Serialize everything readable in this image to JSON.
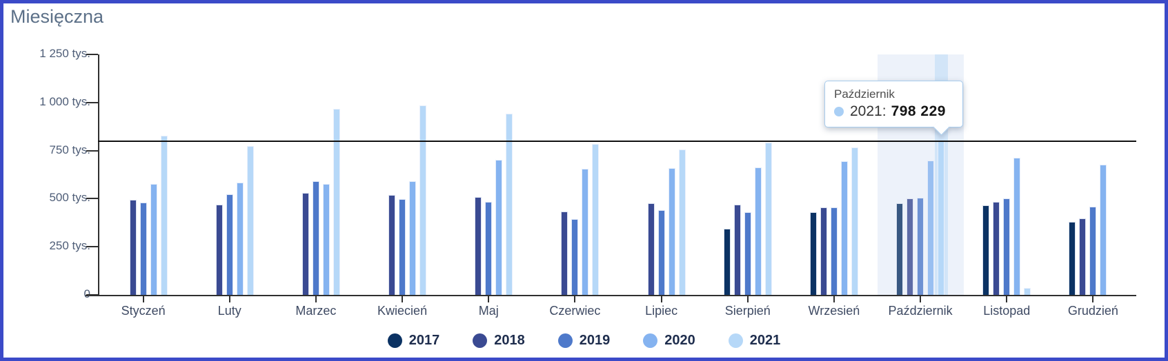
{
  "page": {
    "title": "Miesięczna",
    "frame_border_color": "#3b4ac8"
  },
  "chart_data": {
    "type": "bar",
    "title": "Miesięczna",
    "unit": "tys.",
    "categories": [
      "Styczeń",
      "Luty",
      "Marzec",
      "Kwiecień",
      "Maj",
      "Czerwiec",
      "Lipiec",
      "Sierpień",
      "Wrzesień",
      "Październik",
      "Listopad",
      "Grudzień"
    ],
    "y_ticks": [
      "1 250 tys.",
      "1 000 tys.",
      "750 tys.",
      "500 tys.",
      "250 tys.",
      "0"
    ],
    "ylim": [
      0,
      1250
    ],
    "values_unit_note": "values in thousands (tys.)",
    "series": [
      {
        "name": "2017",
        "color": "#0b3263",
        "values": [
          null,
          null,
          null,
          null,
          null,
          null,
          null,
          344,
          430,
          478,
          466,
          380
        ]
      },
      {
        "name": "2018",
        "color": "#3a4a92",
        "values": [
          495,
          470,
          530,
          519,
          508,
          434,
          476,
          469,
          455,
          501,
          483,
          398
        ]
      },
      {
        "name": "2019",
        "color": "#4e79ca",
        "values": [
          481,
          523,
          590,
          497,
          483,
          395,
          440,
          429,
          455,
          506,
          501,
          458
        ]
      },
      {
        "name": "2020",
        "color": "#85b3f0",
        "values": [
          577,
          583,
          577,
          590,
          701,
          655,
          658,
          662,
          694,
          698,
          713,
          678
        ]
      },
      {
        "name": "2021",
        "color": "#b6d8f8",
        "values": [
          827,
          775,
          966,
          984,
          941,
          784,
          755,
          791,
          766,
          798.229,
          36,
          null
        ]
      }
    ],
    "reference_line_value": 798.229,
    "legend_position": "bottom",
    "grid": false,
    "highlight": {
      "category": "Październik",
      "category_index": 9,
      "series": "2021",
      "band_color": "#edf2fa",
      "bar_band_color": "#d2e5f8"
    },
    "tooltip": {
      "title": "Październik",
      "series_label": "2021:",
      "value": "798 229",
      "dot_color": "#a9cff5"
    }
  }
}
